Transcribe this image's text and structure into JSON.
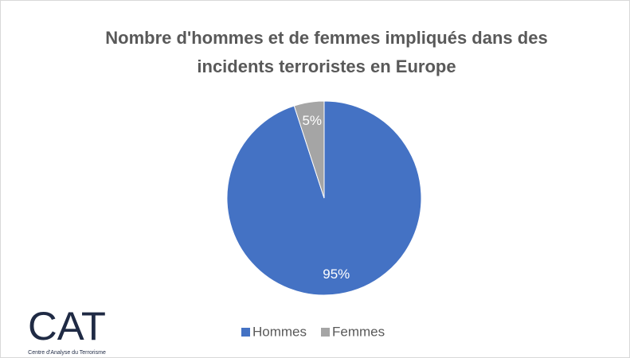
{
  "chart_data": {
    "type": "pie",
    "title": "Nombre d'hommes et de femmes impliqués dans des incidents terroristes en Europe",
    "categories": [
      "Hommes",
      "Femmes"
    ],
    "values": [
      95,
      5
    ],
    "value_labels": [
      "95%",
      "5%"
    ],
    "colors": [
      "#4472c4",
      "#a5a5a5"
    ],
    "legend": "bottom"
  },
  "logo": {
    "text": "CAT",
    "caption": "Centre d'Analyse du Terrorisme"
  }
}
